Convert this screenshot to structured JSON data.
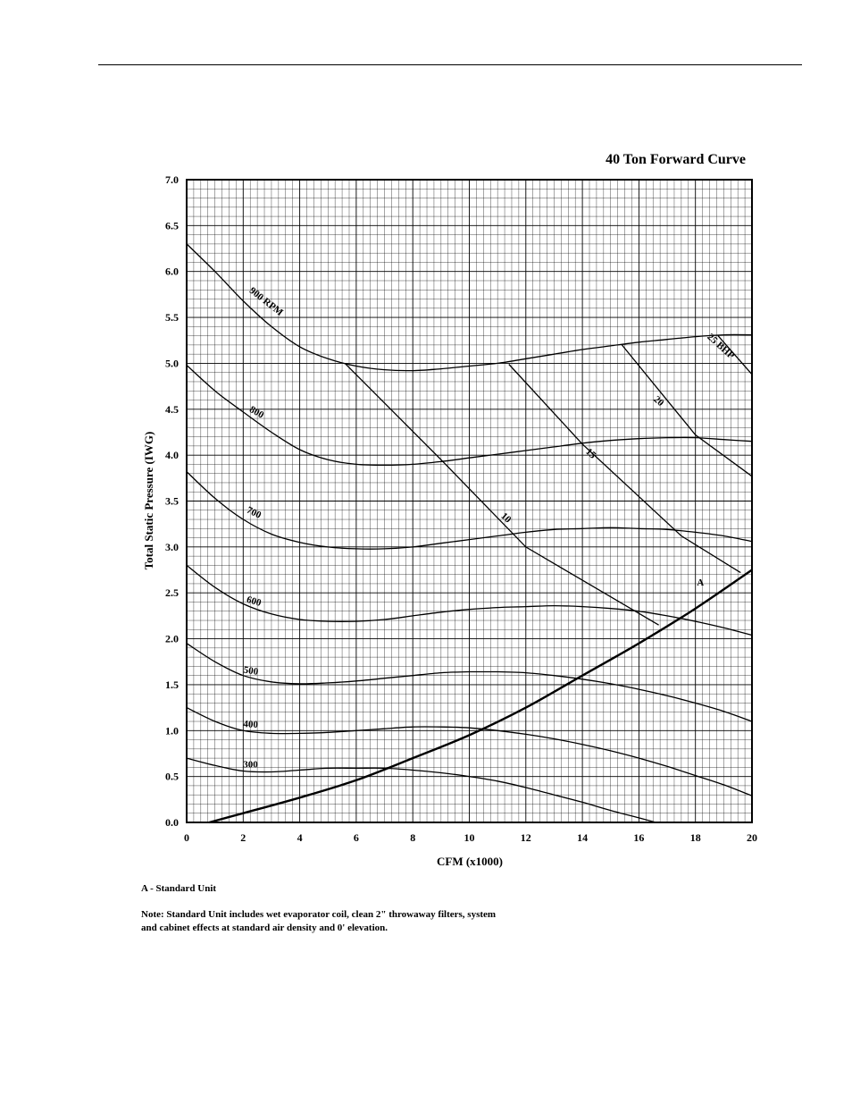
{
  "notes": {
    "legend": "A - Standard Unit",
    "note_line1": "Note:  Standard Unit includes wet evaporator coil, clean 2\" throwaway filters, system",
    "note_line2": "and cabinet effects at standard air density and 0' elevation."
  },
  "chart_data": {
    "type": "line",
    "title": "40 Ton Forward Curve",
    "xlabel": "CFM (x1000)",
    "ylabel": "Total Static Pressure (IWG)",
    "xlim": [
      0,
      20
    ],
    "ylim": [
      0,
      7
    ],
    "xticks": [
      "0",
      "2",
      "4",
      "6",
      "8",
      "10",
      "12",
      "14",
      "16",
      "18",
      "20"
    ],
    "yticks": [
      "0.0",
      "0.5",
      "1.0",
      "1.5",
      "2.0",
      "2.5",
      "3.0",
      "3.5",
      "4.0",
      "4.5",
      "5.0",
      "5.5",
      "6.0",
      "6.5",
      "7.0"
    ],
    "grid": true,
    "rpm_curves": [
      {
        "label": "900 RPM",
        "points": [
          [
            0,
            6.3
          ],
          [
            1,
            6.0
          ],
          [
            2,
            5.68
          ],
          [
            3,
            5.4
          ],
          [
            4,
            5.18
          ],
          [
            5,
            5.05
          ],
          [
            6,
            4.97
          ],
          [
            7,
            4.93
          ],
          [
            8,
            4.92
          ],
          [
            9,
            4.94
          ],
          [
            10,
            4.97
          ],
          [
            11,
            5.0
          ],
          [
            12,
            5.05
          ],
          [
            13,
            5.1
          ],
          [
            14,
            5.15
          ],
          [
            15,
            5.19
          ],
          [
            16,
            5.23
          ],
          [
            17,
            5.26
          ],
          [
            18,
            5.29
          ],
          [
            19,
            5.31
          ],
          [
            20,
            5.31
          ]
        ]
      },
      {
        "label": "800",
        "points": [
          [
            0,
            4.98
          ],
          [
            1,
            4.7
          ],
          [
            2,
            4.47
          ],
          [
            3,
            4.25
          ],
          [
            4,
            4.06
          ],
          [
            5,
            3.95
          ],
          [
            6,
            3.9
          ],
          [
            7,
            3.89
          ],
          [
            8,
            3.9
          ],
          [
            9,
            3.93
          ],
          [
            10,
            3.97
          ],
          [
            11,
            4.01
          ],
          [
            12,
            4.05
          ],
          [
            13,
            4.09
          ],
          [
            14,
            4.13
          ],
          [
            15,
            4.16
          ],
          [
            16,
            4.18
          ],
          [
            17,
            4.19
          ],
          [
            18,
            4.19
          ],
          [
            19,
            4.17
          ],
          [
            20,
            4.15
          ]
        ]
      },
      {
        "label": "700",
        "points": [
          [
            0,
            3.82
          ],
          [
            1,
            3.53
          ],
          [
            2,
            3.3
          ],
          [
            3,
            3.14
          ],
          [
            4,
            3.05
          ],
          [
            5,
            3.0
          ],
          [
            6,
            2.98
          ],
          [
            7,
            2.98
          ],
          [
            8,
            3.0
          ],
          [
            9,
            3.04
          ],
          [
            10,
            3.08
          ],
          [
            11,
            3.12
          ],
          [
            12,
            3.16
          ],
          [
            13,
            3.19
          ],
          [
            14,
            3.2
          ],
          [
            15,
            3.21
          ],
          [
            16,
            3.2
          ],
          [
            17,
            3.19
          ],
          [
            18,
            3.16
          ],
          [
            19,
            3.12
          ],
          [
            20,
            3.06
          ]
        ]
      },
      {
        "label": "600",
        "points": [
          [
            0,
            2.8
          ],
          [
            1,
            2.56
          ],
          [
            2,
            2.38
          ],
          [
            3,
            2.27
          ],
          [
            4,
            2.21
          ],
          [
            5,
            2.19
          ],
          [
            6,
            2.19
          ],
          [
            7,
            2.21
          ],
          [
            8,
            2.25
          ],
          [
            9,
            2.29
          ],
          [
            10,
            2.32
          ],
          [
            11,
            2.34
          ],
          [
            12,
            2.35
          ],
          [
            13,
            2.36
          ],
          [
            14,
            2.35
          ],
          [
            15,
            2.33
          ],
          [
            16,
            2.3
          ],
          [
            17,
            2.25
          ],
          [
            18,
            2.19
          ],
          [
            19,
            2.12
          ],
          [
            20,
            2.04
          ]
        ]
      },
      {
        "label": "500",
        "points": [
          [
            0,
            1.95
          ],
          [
            1,
            1.75
          ],
          [
            2,
            1.6
          ],
          [
            3,
            1.53
          ],
          [
            4,
            1.51
          ],
          [
            5,
            1.52
          ],
          [
            6,
            1.54
          ],
          [
            7,
            1.57
          ],
          [
            8,
            1.6
          ],
          [
            9,
            1.63
          ],
          [
            10,
            1.64
          ],
          [
            11,
            1.64
          ],
          [
            12,
            1.63
          ],
          [
            13,
            1.6
          ],
          [
            14,
            1.56
          ],
          [
            15,
            1.51
          ],
          [
            16,
            1.45
          ],
          [
            17,
            1.38
          ],
          [
            18,
            1.3
          ],
          [
            19,
            1.21
          ],
          [
            20,
            1.1
          ]
        ]
      },
      {
        "label": "400",
        "points": [
          [
            0,
            1.25
          ],
          [
            1,
            1.1
          ],
          [
            2,
            1.0
          ],
          [
            3,
            0.97
          ],
          [
            4,
            0.97
          ],
          [
            5,
            0.98
          ],
          [
            6,
            1.0
          ],
          [
            7,
            1.02
          ],
          [
            8,
            1.04
          ],
          [
            9,
            1.04
          ],
          [
            10,
            1.03
          ],
          [
            11,
            1.0
          ],
          [
            12,
            0.96
          ],
          [
            13,
            0.91
          ],
          [
            14,
            0.85
          ],
          [
            15,
            0.78
          ],
          [
            16,
            0.7
          ],
          [
            17,
            0.61
          ],
          [
            18,
            0.51
          ],
          [
            19,
            0.41
          ],
          [
            20,
            0.29
          ]
        ]
      },
      {
        "label": "300",
        "points": [
          [
            0,
            0.7
          ],
          [
            1,
            0.62
          ],
          [
            2,
            0.56
          ],
          [
            3,
            0.55
          ],
          [
            4,
            0.57
          ],
          [
            5,
            0.59
          ],
          [
            6,
            0.59
          ],
          [
            7,
            0.59
          ],
          [
            8,
            0.57
          ],
          [
            9,
            0.54
          ],
          [
            10,
            0.5
          ],
          [
            11,
            0.45
          ],
          [
            12,
            0.38
          ],
          [
            13,
            0.3
          ],
          [
            14,
            0.22
          ],
          [
            15,
            0.13
          ],
          [
            16,
            0.05
          ],
          [
            16.6,
            0.0
          ]
        ]
      }
    ],
    "bhp_lines": [
      {
        "label": "10",
        "points": [
          [
            5.6,
            5.0
          ],
          [
            9.0,
            3.95
          ],
          [
            12.0,
            3.0
          ],
          [
            16.7,
            2.15
          ]
        ]
      },
      {
        "label": "15",
        "points": [
          [
            11.4,
            4.99
          ],
          [
            14.0,
            4.12
          ],
          [
            17.5,
            3.12
          ],
          [
            19.6,
            2.72
          ]
        ]
      },
      {
        "label": "20",
        "points": [
          [
            15.4,
            5.2
          ],
          [
            18.0,
            4.22
          ],
          [
            20.0,
            3.77
          ]
        ]
      },
      {
        "label": "25 BHP",
        "points": [
          [
            18.8,
            5.3
          ],
          [
            20.0,
            4.88
          ]
        ]
      }
    ],
    "system_curve": {
      "label": "A",
      "points": [
        [
          0.8,
          0.0
        ],
        [
          2,
          0.1
        ],
        [
          4,
          0.27
        ],
        [
          6,
          0.46
        ],
        [
          8,
          0.7
        ],
        [
          10,
          0.95
        ],
        [
          12,
          1.25
        ],
        [
          14,
          1.6
        ],
        [
          16,
          1.95
        ],
        [
          18,
          2.33
        ],
        [
          20,
          2.75
        ]
      ]
    }
  }
}
